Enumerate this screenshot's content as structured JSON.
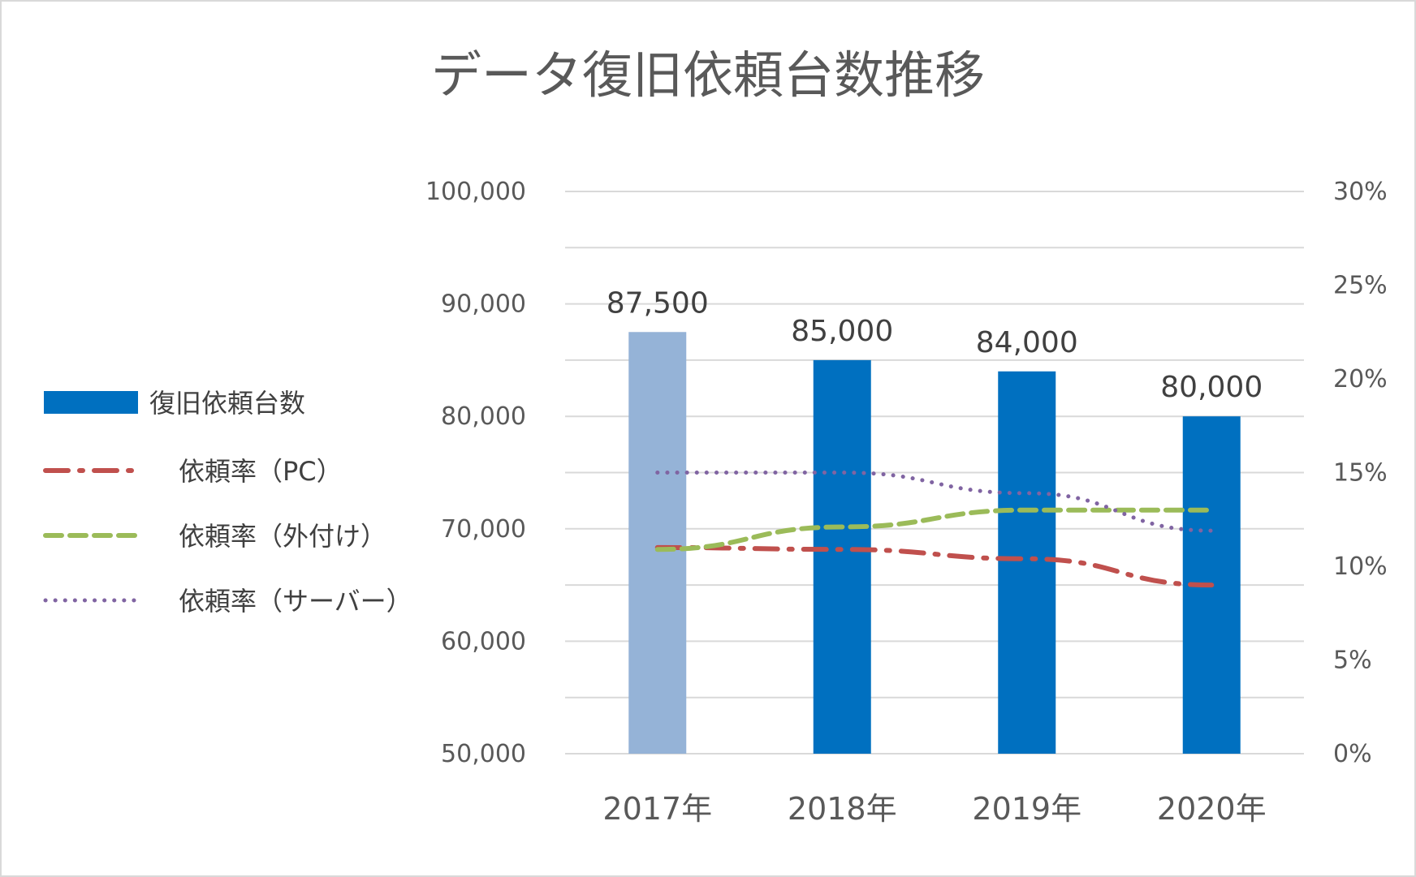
{
  "chart_data": {
    "type": "bar",
    "title": "データ復旧依頼台数推移",
    "categories": [
      "2017年",
      "2018年",
      "2019年",
      "2020年"
    ],
    "bar_series": {
      "name": "復旧依頼台数",
      "values": [
        87500,
        85000,
        84000,
        80000
      ],
      "data_labels": [
        "87,500",
        "85,000",
        "84,000",
        "80,000"
      ],
      "color": "#0070c0",
      "highlight_color": "#95b3d7",
      "highlight_index": 0
    },
    "line_series": [
      {
        "name": "依頼率（PC）",
        "values": [
          11.0,
          10.9,
          10.4,
          9.0
        ],
        "color": "#c0504d",
        "style": "dash-dot"
      },
      {
        "name": "依頼率（外付け）",
        "values": [
          10.9,
          12.1,
          13.0,
          13.0
        ],
        "color": "#9bbb59",
        "style": "dashed"
      },
      {
        "name": "依頼率（サーバー）",
        "values": [
          15.0,
          15.0,
          13.9,
          11.9
        ],
        "color": "#8064a2",
        "style": "dotted"
      }
    ],
    "y_left": {
      "min": 50000,
      "max": 100000,
      "step": 5000,
      "tick_labels": [
        "50,000",
        "60,000",
        "70,000",
        "80,000",
        "90,000",
        "100,000"
      ],
      "tick_values": [
        50000,
        60000,
        70000,
        80000,
        90000,
        100000
      ]
    },
    "y_right": {
      "min": 0,
      "max": 30,
      "tick_labels": [
        "0%",
        "5%",
        "10%",
        "15%",
        "20%",
        "25%",
        "30%"
      ],
      "tick_values": [
        0,
        5,
        10,
        15,
        20,
        25,
        30
      ]
    },
    "grid": true,
    "grid_color": "#d9d9d9",
    "legend_position": "left"
  }
}
